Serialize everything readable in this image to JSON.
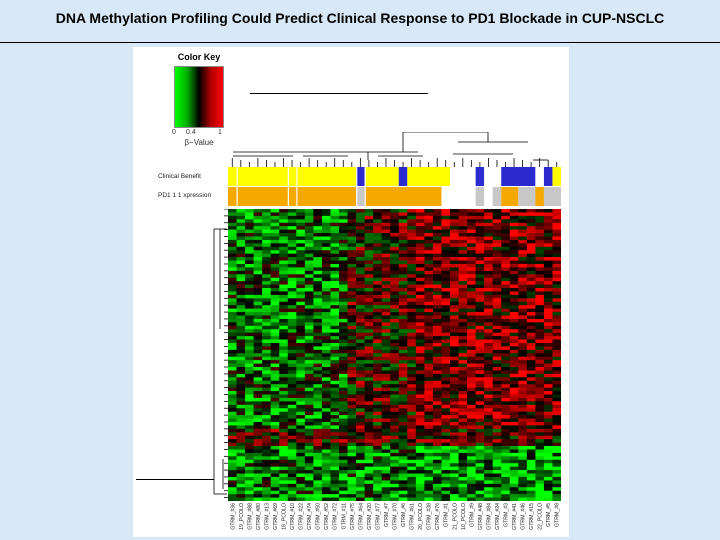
{
  "slide": {
    "title": "DNA Methylation Profiling Could Predict Clinical Response to PD1 Blockade in CUP-NSCLC"
  },
  "color_key": {
    "title": "Color Key",
    "ticks": [
      "0",
      "0.4",
      "1"
    ],
    "axis_label": "β−Value",
    "low_color": "#00ff00",
    "mid_color": "#000000",
    "high_color": "#ff0000"
  },
  "annotations": [
    {
      "label": "Clinical Benefit",
      "blocks": [
        {
          "color": "#ffff00",
          "n": 15
        },
        {
          "color": "#2a2ad0",
          "n": 1
        },
        {
          "color": "#ffff00",
          "n": 4
        },
        {
          "color": "#2a2ad0",
          "n": 1
        },
        {
          "color": "#ffff00",
          "n": 5
        },
        {
          "color": "#ffffff",
          "n": 3
        },
        {
          "color": "#2a2ad0",
          "n": 1
        },
        {
          "color": "#ffffff",
          "n": 2
        },
        {
          "color": "#2a2ad0",
          "n": 4
        },
        {
          "color": "#ffffff",
          "n": 1
        },
        {
          "color": "#2a2ad0",
          "n": 1
        },
        {
          "color": "#ffff00",
          "n": 1
        }
      ]
    },
    {
      "label": "PD1 1 1 xpression",
      "blocks": [
        {
          "color": "#f5a800",
          "n": 15
        },
        {
          "color": "#c8c8c8",
          "n": 1
        },
        {
          "color": "#f5a800",
          "n": 9
        },
        {
          "color": "#ffffff",
          "n": 4
        },
        {
          "color": "#c8c8c8",
          "n": 1
        },
        {
          "color": "#ffffff",
          "n": 1
        },
        {
          "color": "#c8c8c8",
          "n": 1
        },
        {
          "color": "#f5a800",
          "n": 2
        },
        {
          "color": "#c8c8c8",
          "n": 2
        },
        {
          "color": "#f5a800",
          "n": 1
        },
        {
          "color": "#c8c8c8",
          "n": 2
        }
      ]
    }
  ],
  "heatmap": {
    "n_rows": 85,
    "n_cols": 39,
    "seed": 7
  },
  "sample_labels": [
    "GTRM_#36",
    "19_PCOLO",
    "GTRM_#88",
    "GTRM_#80",
    "GTRM_#13",
    "GTRM_#69",
    "18_PCOLO",
    "GTRM_#10",
    "GTRM_#22",
    "GTRM_#74",
    "GTRM_#50",
    "GTRM_#52",
    "GTRM_#72",
    "GTRM_#11",
    "GTRM_#75",
    "GTRM_#64",
    "GTRM_#20",
    "GTRM_#77",
    "GTRM_#7",
    "GTRM_#70",
    "GTRM_#6",
    "GTRM_#61",
    "20_PCOLO",
    "GTRM_#38",
    "GTRM_#76",
    "GTRM_#1",
    "21_PCOLO",
    "10_PCOLO",
    "GTRM_#9",
    "GTRM_#48",
    "GTRM_#84",
    "GTRM_#24",
    "GTRM_#3",
    "GTRM_#41",
    "GTRM_#46",
    "GTRM_#15",
    "22_PCOLO",
    "GTRM_#5",
    "GTRM_#8"
  ]
}
